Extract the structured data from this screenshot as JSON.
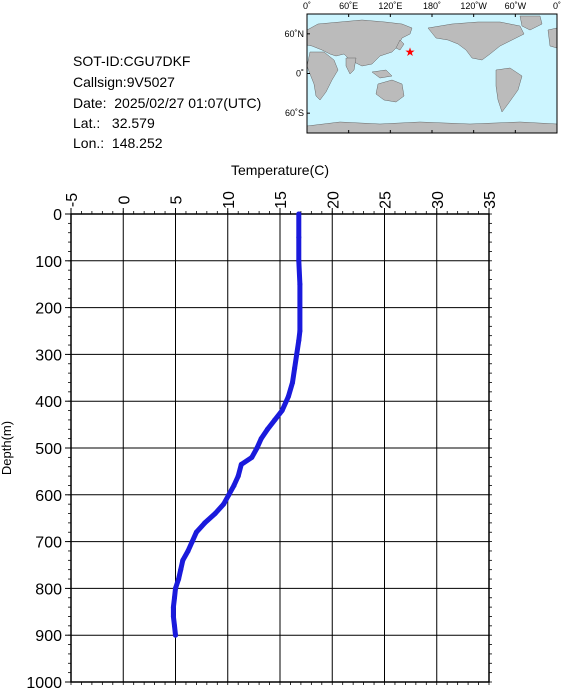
{
  "info": {
    "sot_id": "SOT-ID:CGU7DKF",
    "callsign": "Callsign:9V5027",
    "date": "Date:  2025/02/27 01:07(UTC)",
    "lat": "Lat.:   32.579",
    "lon": "Lon.:  148.252"
  },
  "map": {
    "lon_labels": [
      "0˚",
      "60˚E",
      "120˚E",
      "180˚",
      "120˚W",
      "60˚W",
      "0˚"
    ],
    "lat_labels": [
      "60˚N",
      "0˚",
      "60˚S"
    ],
    "marker": {
      "lat": 32.579,
      "lon": 148.252,
      "color": "#ff0000"
    },
    "ocean_color": "#ccf5ff",
    "land_color": "#bbbbbb"
  },
  "chart_data": {
    "type": "line",
    "title": "",
    "xlabel": "Temperature(C)",
    "ylabel": "Depth(m)",
    "xlim": [
      -5,
      35
    ],
    "ylim": [
      0,
      1000
    ],
    "x_ticks": [
      "-5",
      "0",
      "5",
      "10",
      "15",
      "20",
      "25",
      "30",
      "35"
    ],
    "y_ticks": [
      "0",
      "100",
      "200",
      "300",
      "400",
      "500",
      "600",
      "700",
      "800",
      "900",
      "1000"
    ],
    "grid": true,
    "series": [
      {
        "color": "#1a1adc",
        "points": [
          [
            16.8,
            0
          ],
          [
            16.8,
            50
          ],
          [
            16.8,
            100
          ],
          [
            16.9,
            150
          ],
          [
            16.9,
            200
          ],
          [
            16.9,
            250
          ],
          [
            16.8,
            270
          ],
          [
            16.6,
            300
          ],
          [
            16.4,
            330
          ],
          [
            16.2,
            360
          ],
          [
            15.8,
            390
          ],
          [
            15.2,
            420
          ],
          [
            14.5,
            440
          ],
          [
            13.8,
            460
          ],
          [
            13.2,
            480
          ],
          [
            12.8,
            500
          ],
          [
            12.3,
            520
          ],
          [
            11.3,
            535
          ],
          [
            11.0,
            560
          ],
          [
            10.6,
            580
          ],
          [
            10.1,
            600
          ],
          [
            9.6,
            620
          ],
          [
            8.8,
            640
          ],
          [
            7.8,
            660
          ],
          [
            7.0,
            680
          ],
          [
            6.6,
            700
          ],
          [
            6.2,
            720
          ],
          [
            5.7,
            740
          ],
          [
            5.5,
            760
          ],
          [
            5.3,
            780
          ],
          [
            5.0,
            800
          ],
          [
            4.9,
            820
          ],
          [
            4.8,
            840
          ],
          [
            4.8,
            860
          ],
          [
            4.9,
            880
          ],
          [
            5.0,
            900
          ]
        ]
      }
    ]
  }
}
